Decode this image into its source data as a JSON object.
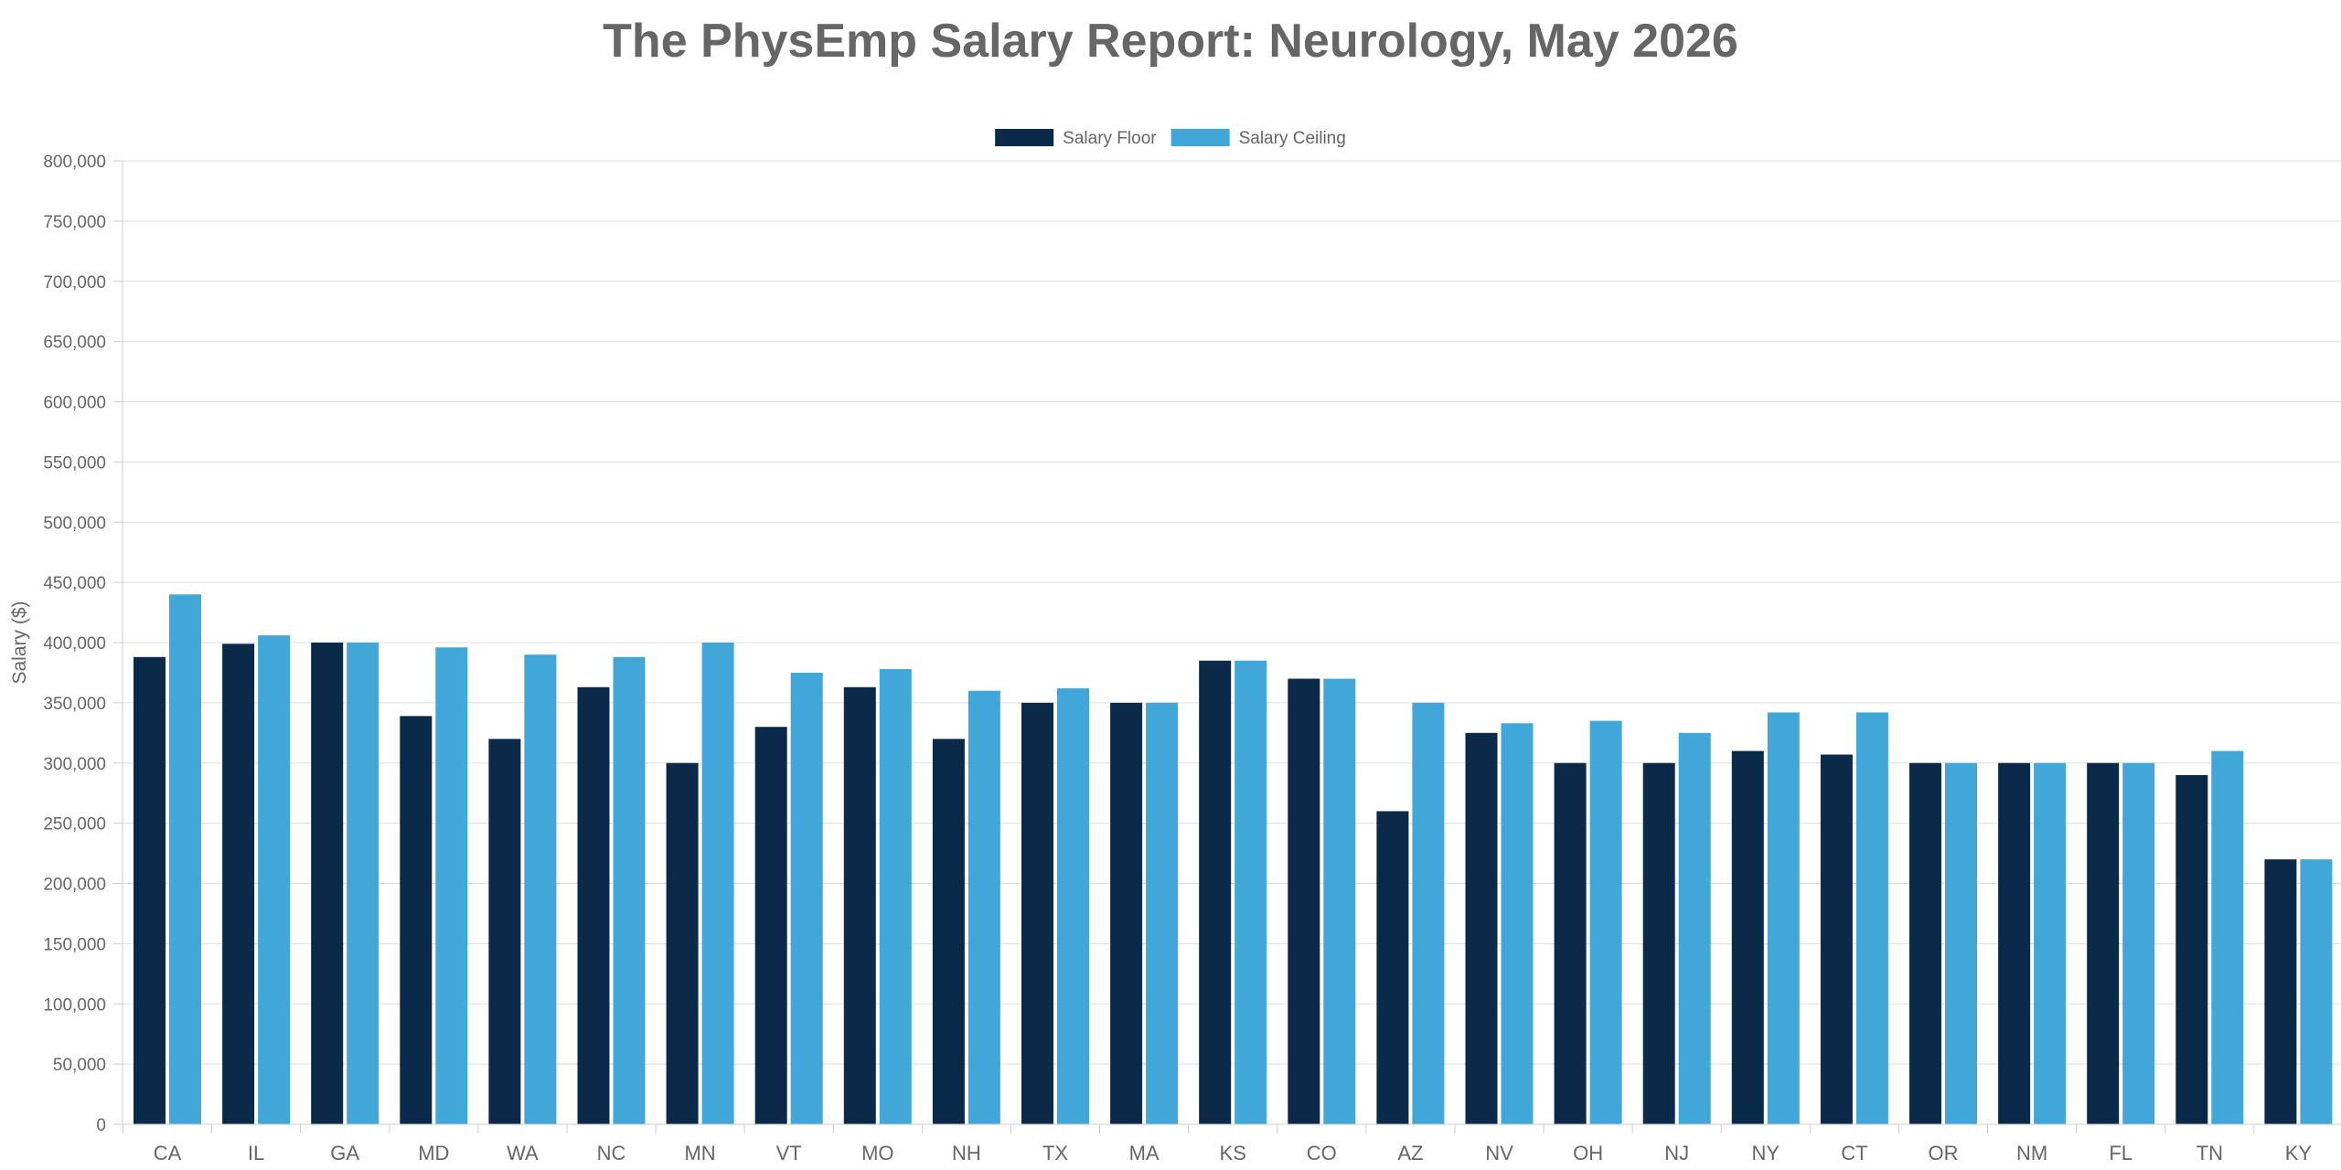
{
  "chart_data": {
    "type": "bar",
    "title": "The PhysEmp Salary Report: Neurology, May 2026",
    "xlabel": "",
    "ylabel": "Salary ($)",
    "ylim": [
      0,
      800000
    ],
    "yticks": [
      0,
      50000,
      100000,
      150000,
      200000,
      250000,
      300000,
      350000,
      400000,
      450000,
      500000,
      550000,
      600000,
      650000,
      700000,
      750000,
      800000
    ],
    "ytick_labels": [
      "0",
      "50,000",
      "100,000",
      "150,000",
      "200,000",
      "250,000",
      "300,000",
      "350,000",
      "400,000",
      "450,000",
      "500,000",
      "550,000",
      "600,000",
      "650,000",
      "700,000",
      "750,000",
      "800,000"
    ],
    "grid": true,
    "legend_position": "top-center",
    "categories": [
      "CA",
      "IL",
      "GA",
      "MD",
      "WA",
      "NC",
      "MN",
      "VT",
      "MO",
      "NH",
      "TX",
      "MA",
      "KS",
      "CO",
      "AZ",
      "NV",
      "OH",
      "NJ",
      "NY",
      "CT",
      "OR",
      "NM",
      "FL",
      "TN",
      "KY"
    ],
    "series": [
      {
        "name": "Salary Floor",
        "color": "#0b2a4a",
        "values": [
          388000,
          399000,
          400000,
          339000,
          320000,
          363000,
          300000,
          330000,
          363000,
          320000,
          350000,
          350000,
          385000,
          370000,
          260000,
          325000,
          300000,
          300000,
          310000,
          307000,
          300000,
          300000,
          300000,
          290000,
          220000
        ]
      },
      {
        "name": "Salary Ceiling",
        "color": "#41a7d8",
        "values": [
          440000,
          406000,
          400000,
          396000,
          390000,
          388000,
          400000,
          375000,
          378000,
          360000,
          362000,
          350000,
          385000,
          370000,
          350000,
          333000,
          335000,
          325000,
          342000,
          342000,
          300000,
          300000,
          300000,
          310000,
          220000
        ]
      }
    ]
  }
}
